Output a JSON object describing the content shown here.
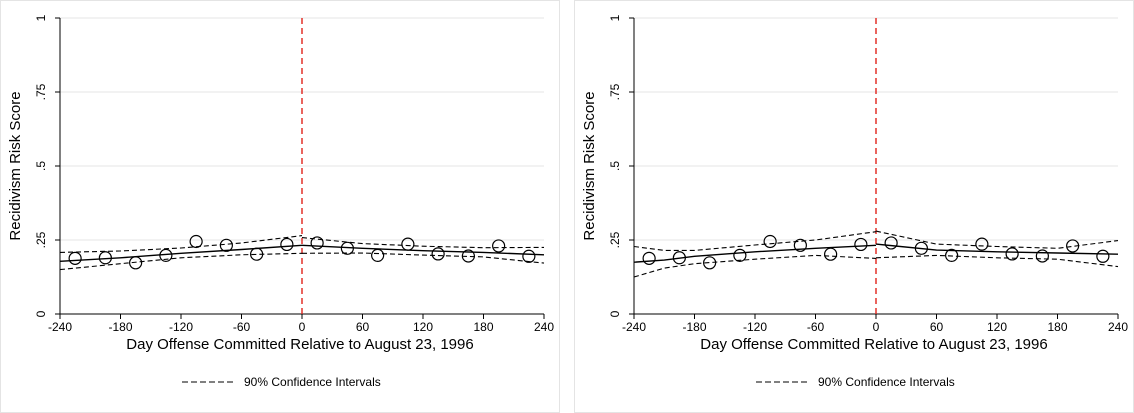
{
  "chart_data": [
    {
      "type": "scatter",
      "xlabel": "Day Offense Committed Relative to August 23, 1996",
      "ylabel": "Recidivism Risk Score",
      "xlim": [
        -240,
        240
      ],
      "ylim": [
        0,
        1
      ],
      "xticks": [
        "-240",
        "-180",
        "-120",
        "-60",
        "0",
        "60",
        "120",
        "180",
        "240"
      ],
      "yticks": [
        "0",
        ".25",
        ".5",
        ".75",
        "1"
      ],
      "grid": true,
      "cutoff": 0,
      "legend_placement": "bottom",
      "legend": "90% Confidence Intervals",
      "colors": {
        "cutoff": "#e0221b",
        "line": "#000000",
        "grid": "#e6e6e6"
      },
      "points": {
        "x": [
          -225,
          -195,
          -165,
          -135,
          -105,
          -75,
          -45,
          -15,
          15,
          45,
          75,
          105,
          135,
          165,
          195,
          225
        ],
        "y": [
          0.188,
          0.19,
          0.173,
          0.198,
          0.245,
          0.232,
          0.202,
          0.235,
          0.24,
          0.222,
          0.198,
          0.236,
          0.203,
          0.196,
          0.23,
          0.195
        ]
      },
      "fit_left": {
        "x": [
          -240,
          -180,
          -120,
          -60,
          0
        ],
        "y": [
          0.178,
          0.19,
          0.205,
          0.218,
          0.232
        ],
        "upper": [
          0.208,
          0.213,
          0.223,
          0.24,
          0.265
        ],
        "lower": [
          0.15,
          0.17,
          0.19,
          0.2,
          0.205
        ]
      },
      "fit_right": {
        "x": [
          0,
          60,
          120,
          180,
          240
        ],
        "y": [
          0.232,
          0.222,
          0.214,
          0.208,
          0.2
        ],
        "upper": [
          0.258,
          0.238,
          0.229,
          0.224,
          0.225
        ],
        "lower": [
          0.205,
          0.206,
          0.199,
          0.193,
          0.172
        ]
      }
    },
    {
      "type": "scatter",
      "xlabel": "Day Offense Committed Relative to August 23, 1996",
      "ylabel": "Recidivism Risk Score",
      "xlim": [
        -240,
        240
      ],
      "ylim": [
        0,
        1
      ],
      "xticks": [
        "-240",
        "-180",
        "-120",
        "-60",
        "0",
        "60",
        "120",
        "180",
        "240"
      ],
      "yticks": [
        "0",
        ".25",
        ".5",
        ".75",
        "1"
      ],
      "grid": true,
      "cutoff": 0,
      "legend_placement": "bottom",
      "legend": "90% Confidence Intervals",
      "colors": {
        "cutoff": "#e0221b",
        "line": "#000000",
        "grid": "#e6e6e6"
      },
      "points": {
        "x": [
          -225,
          -195,
          -165,
          -135,
          -105,
          -75,
          -45,
          -15,
          15,
          45,
          75,
          105,
          135,
          165,
          195,
          225
        ],
        "y": [
          0.188,
          0.19,
          0.173,
          0.198,
          0.245,
          0.232,
          0.202,
          0.235,
          0.24,
          0.222,
          0.198,
          0.236,
          0.203,
          0.196,
          0.23,
          0.195
        ]
      },
      "fit_left": {
        "x": [
          -240,
          -210,
          -180,
          -120,
          -60,
          0
        ],
        "y": [
          0.175,
          0.182,
          0.195,
          0.21,
          0.222,
          0.232
        ],
        "upper": [
          0.228,
          0.215,
          0.215,
          0.233,
          0.25,
          0.278
        ],
        "lower": [
          0.125,
          0.155,
          0.17,
          0.185,
          0.198,
          0.188
        ]
      },
      "fit_right": {
        "x": [
          0,
          60,
          120,
          180,
          240
        ],
        "y": [
          0.236,
          0.216,
          0.21,
          0.206,
          0.202
        ],
        "upper": [
          0.28,
          0.236,
          0.228,
          0.222,
          0.248
        ],
        "lower": [
          0.19,
          0.198,
          0.19,
          0.185,
          0.16
        ]
      }
    }
  ]
}
